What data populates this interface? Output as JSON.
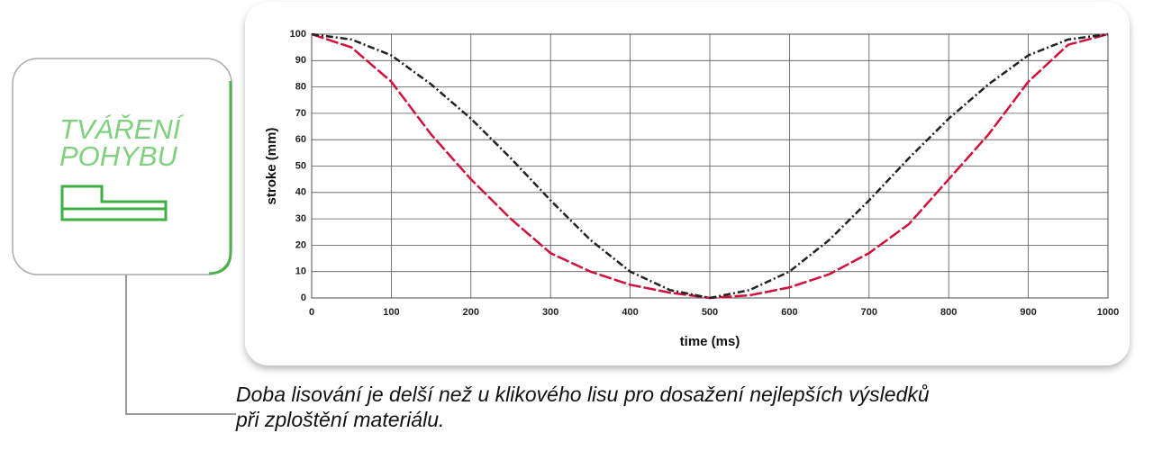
{
  "chart_data": {
    "type": "line",
    "x": [
      0,
      50,
      100,
      150,
      200,
      250,
      300,
      350,
      400,
      450,
      500,
      550,
      600,
      650,
      700,
      750,
      800,
      850,
      900,
      950,
      1000
    ],
    "series": [
      {
        "color": "#d0103a",
        "values": [
          100,
          95,
          82,
          62,
          45,
          30,
          17,
          10,
          5,
          2,
          0,
          1,
          4,
          9,
          17,
          28,
          45,
          62,
          82,
          96,
          100
        ]
      },
      {
        "color": "#222222",
        "values": [
          100,
          98,
          92,
          81,
          68,
          53,
          37,
          22,
          10,
          3,
          0,
          3,
          10,
          22,
          37,
          53,
          68,
          81,
          92,
          98,
          100
        ]
      }
    ],
    "xlabel": "time (ms)",
    "ylabel": "stroke (mm)",
    "xlim": [
      0,
      1000
    ],
    "xticks": [
      0,
      100,
      200,
      300,
      400,
      500,
      600,
      700,
      800,
      900,
      1000
    ],
    "ylim": [
      0,
      100
    ],
    "yticks": [
      0,
      10,
      20,
      30,
      40,
      50,
      60,
      70,
      80,
      90,
      100
    ],
    "grid": true
  },
  "card": {
    "title_lines": [
      "TVÁŘENÍ",
      "POHYBU"
    ]
  },
  "caption": {
    "lines": [
      "Doba lisování je delší než u klikového lisu pro dosažení nejlepších výsledků",
      "při zploštění materiálu."
    ]
  }
}
